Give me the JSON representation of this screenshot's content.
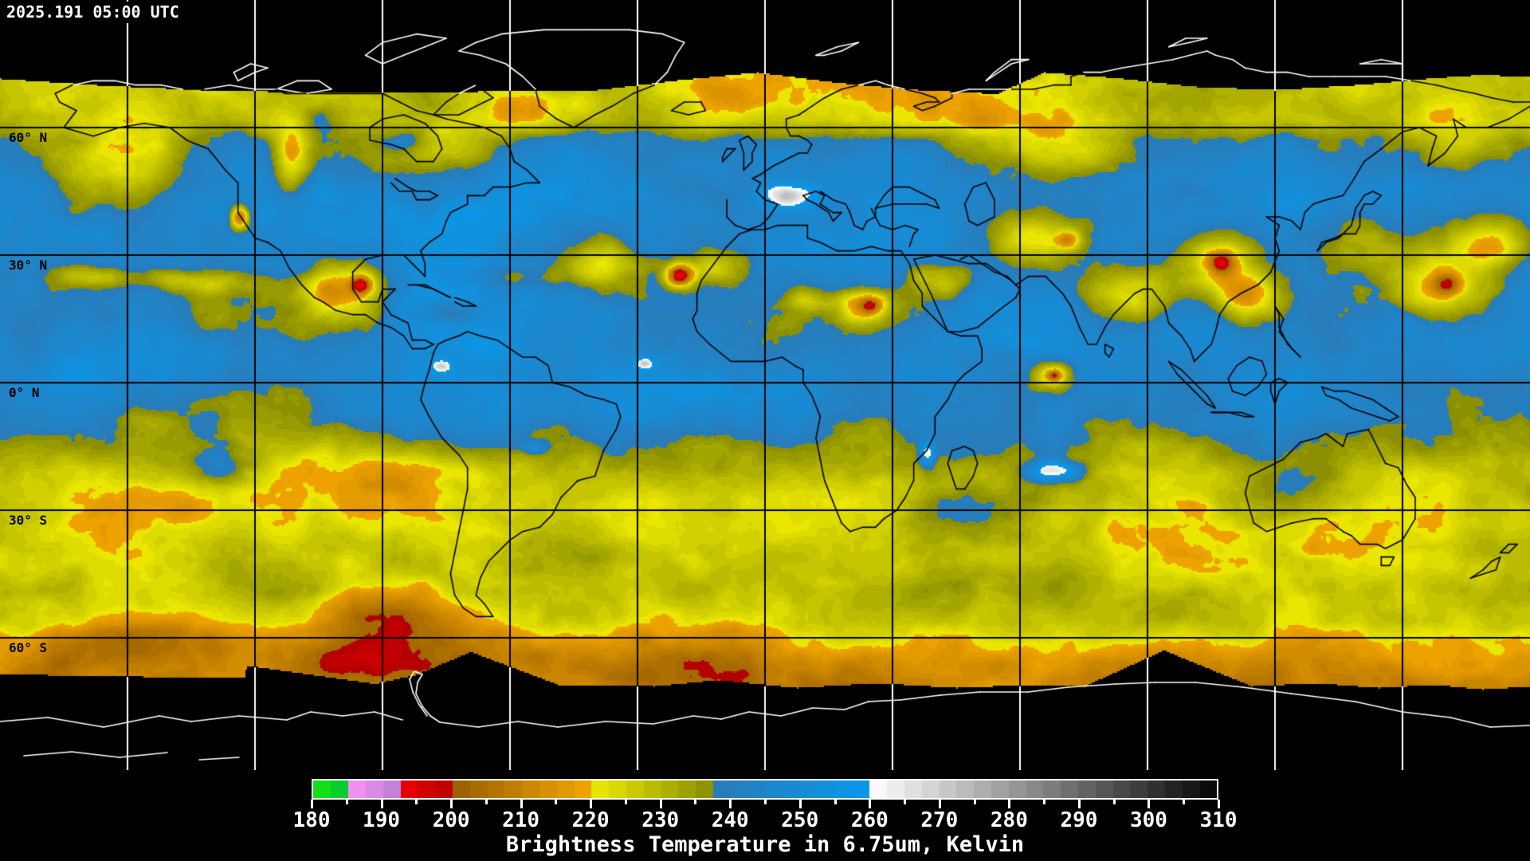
{
  "header": {
    "timestamp": "2025.191 05:00 UTC"
  },
  "map": {
    "projection": "equirectangular",
    "grid": {
      "lon_step_deg": 30,
      "lat_step_deg": 30
    },
    "latitude_labels": [
      {
        "text": "60° N",
        "lat": 60
      },
      {
        "text": "30° N",
        "lat": 30
      },
      {
        "text": "0° N",
        "lat": 0
      },
      {
        "text": "30° S",
        "lat": -30
      },
      {
        "text": "60° S",
        "lat": -60
      }
    ],
    "colors": {
      "no_data": "#000000",
      "ocean_moist_blue": "#1890D8",
      "cloud_yellow": "#D8D800",
      "cold_cloud_orange": "#E89018",
      "coldest_cloud_red": "#DC1414",
      "dry_warm_white": "#F8F8F8",
      "gridline_over_data": "#000000",
      "gridline_over_void": "#FFFFFF",
      "coastline_over_data": "#000000",
      "coastline_over_void": "#FFFFFF"
    }
  },
  "colorbar": {
    "title": "Brightness Temperature in 6.75um, Kelvin",
    "min": 180,
    "max": 310,
    "major_tick_step": 10,
    "minor_tick_step": 5,
    "tick_labels": [
      "180",
      "190",
      "200",
      "210",
      "220",
      "230",
      "240",
      "250",
      "260",
      "270",
      "280",
      "290",
      "300",
      "310"
    ],
    "segments": [
      {
        "from": 180,
        "to": 185,
        "c0": "#14E414",
        "c1": "#00BE3C"
      },
      {
        "from": 185,
        "to": 191,
        "c0": "#F493F4",
        "c1": "#C07FD8"
      },
      {
        "from": 191,
        "to": 200,
        "c0": "#F20000",
        "c1": "#B20000"
      },
      {
        "from": 200,
        "to": 219,
        "c0": "#9C6200",
        "c1": "#F2A600"
      },
      {
        "from": 219,
        "to": 236,
        "c0": "#F0EC00",
        "c1": "#8C9000"
      },
      {
        "from": 236,
        "to": 259,
        "c0": "#2C7AB6",
        "c1": "#089AEC"
      },
      {
        "from": 259,
        "to": 262,
        "c0": "#FFFFFF",
        "c1": "#F6F6F6"
      },
      {
        "from": 262,
        "to": 310,
        "c0": "#F2F2F2",
        "c1": "#000000"
      }
    ]
  },
  "chart_data": {
    "type": "heatmap",
    "title": "Brightness Temperature in 6.75um, Kelvin",
    "timestamp": "2025.191 05:00 UTC",
    "units": "Kelvin",
    "wavelength_um": 6.75,
    "value_range": [
      180,
      310
    ],
    "colorbar_ticks": [
      180,
      190,
      200,
      210,
      220,
      230,
      240,
      250,
      260,
      270,
      280,
      290,
      300,
      310
    ],
    "latitude_gridlines_deg": [
      60,
      30,
      0,
      -30,
      -60
    ],
    "longitude_grid_step_deg": 30
  }
}
